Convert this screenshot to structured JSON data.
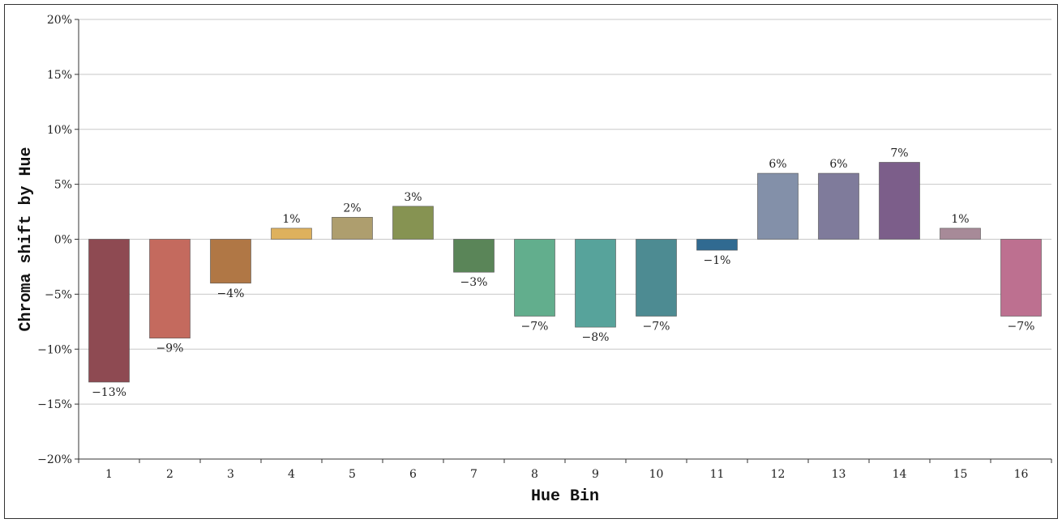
{
  "chart_data": {
    "type": "bar",
    "xlabel": "Hue Bin",
    "ylabel": "Chroma shift by Hue",
    "ylim": [
      -20,
      20
    ],
    "yticks": [
      -20,
      -15,
      -10,
      -5,
      0,
      5,
      10,
      15,
      20
    ],
    "ytick_suffix": "%",
    "grid": "horizontal",
    "categories": [
      "1",
      "2",
      "3",
      "4",
      "5",
      "6",
      "7",
      "8",
      "9",
      "10",
      "11",
      "12",
      "13",
      "14",
      "15",
      "16"
    ],
    "values": [
      -13,
      -9,
      -4,
      1,
      2,
      3,
      -3,
      -7,
      -8,
      -7,
      -1,
      6,
      6,
      7,
      1,
      -7
    ],
    "data_labels": [
      "−13%",
      "−9%",
      "−4%",
      "1%",
      "2%",
      "3%",
      "−3%",
      "−7%",
      "−8%",
      "−7%",
      "−1%",
      "6%",
      "6%",
      "7%",
      "1%",
      "−7%"
    ],
    "colors": [
      "#8e4a52",
      "#c46a5e",
      "#b07745",
      "#deb15d",
      "#ae9e6e",
      "#869352",
      "#5a8558",
      "#62ae8d",
      "#57a39b",
      "#4d8b92",
      "#306a91",
      "#8390a9",
      "#7f7b9b",
      "#7c5e8a",
      "#a78a98",
      "#bd7090"
    ]
  }
}
